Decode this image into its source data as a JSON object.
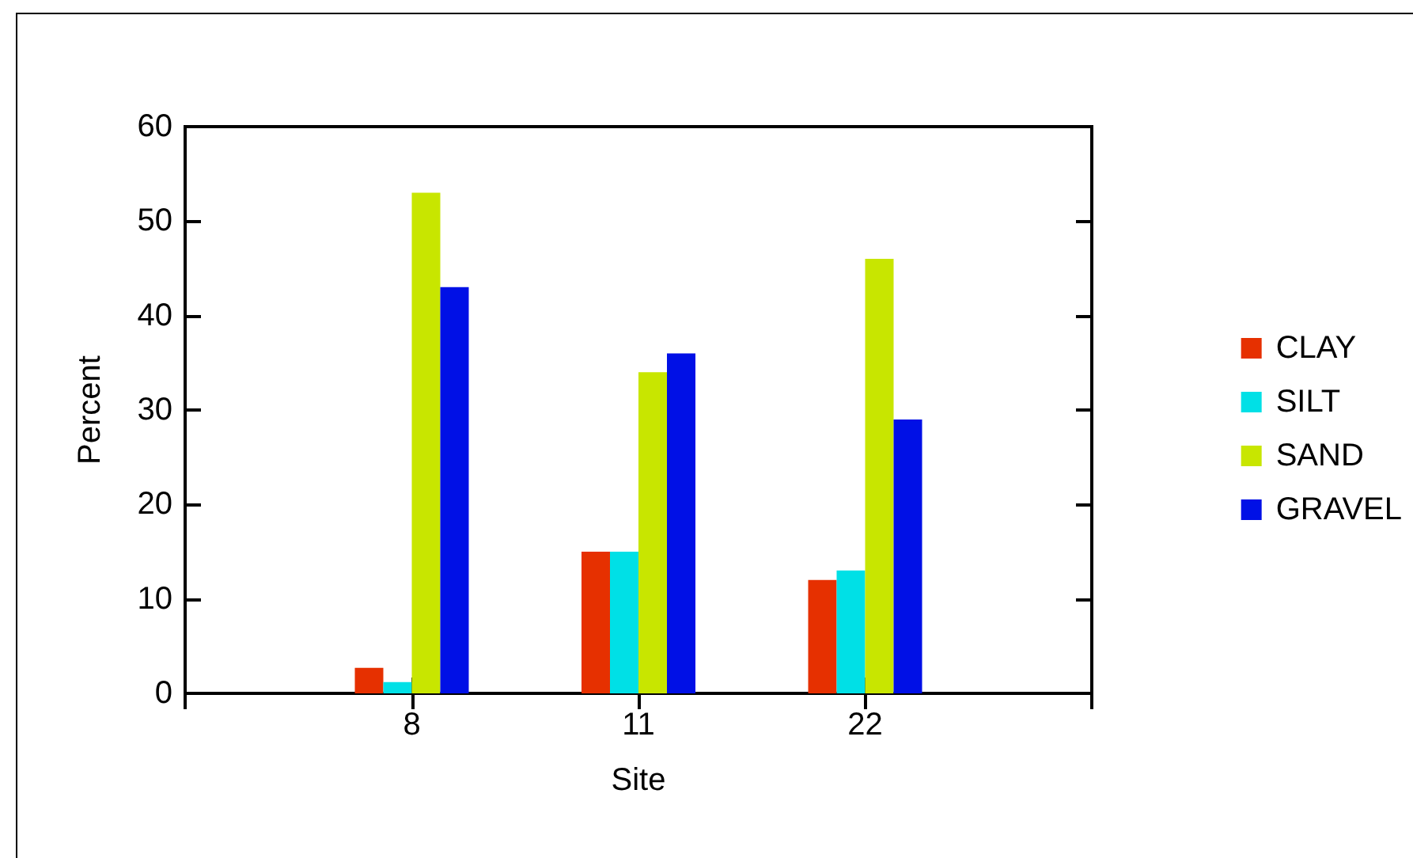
{
  "chart_data": {
    "type": "bar",
    "xlabel": "Site",
    "ylabel": "Percent",
    "categories": [
      "8",
      "11",
      "22"
    ],
    "series": [
      {
        "name": "CLAY",
        "color": "#e63000",
        "values": [
          2.7,
          15,
          12
        ]
      },
      {
        "name": "SILT",
        "color": "#00e0e6",
        "values": [
          1.2,
          15,
          13
        ]
      },
      {
        "name": "SAND",
        "color": "#c8e600",
        "values": [
          53,
          34,
          46
        ]
      },
      {
        "name": "GRAVEL",
        "color": "#0010e6",
        "values": [
          43,
          36,
          29
        ]
      }
    ],
    "ylim": [
      0,
      60
    ],
    "yticks": [
      0,
      10,
      20,
      30,
      40,
      50,
      60
    ],
    "grid": false,
    "legend": "right"
  }
}
